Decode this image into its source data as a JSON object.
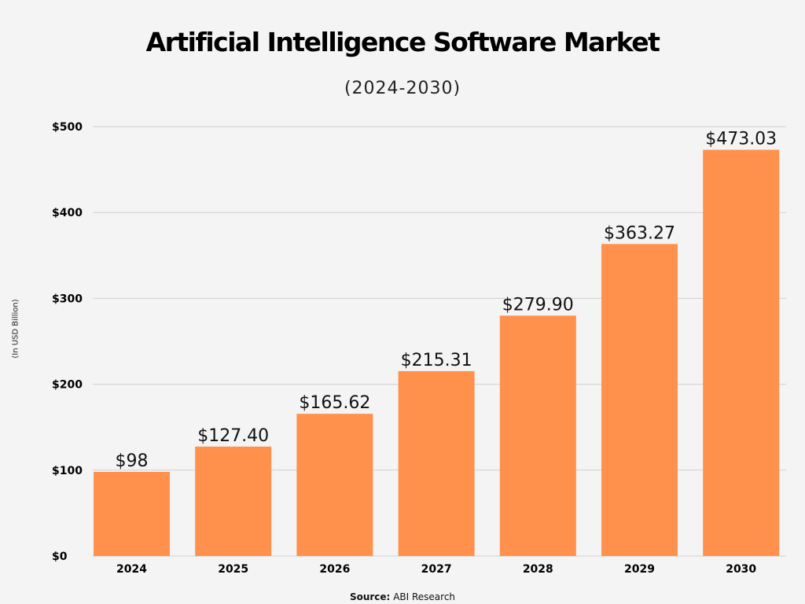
{
  "chart_data": {
    "type": "bar",
    "title": "Artificial Intelligence Software Market",
    "subtitle": "(2024-2030)",
    "ylabel": "(In USD Billion)",
    "xlabel": "",
    "categories": [
      "2024",
      "2025",
      "2026",
      "2027",
      "2028",
      "2029",
      "2030"
    ],
    "values": [
      98,
      127.4,
      165.62,
      215.31,
      279.9,
      363.27,
      473.03
    ],
    "data_labels": [
      "$98",
      "$127.40",
      "$165.62",
      "$215.31",
      "$279.90",
      "$363.27",
      "$473.03"
    ],
    "ylim": [
      0,
      500
    ],
    "yticks": [
      0,
      100,
      200,
      300,
      400,
      500
    ],
    "ytick_labels": [
      "$0",
      "$100",
      "$200",
      "$300",
      "$400",
      "$500"
    ],
    "grid": true,
    "bar_color": "#ff914d",
    "source_label": "Source:",
    "source": "ABI Research"
  }
}
